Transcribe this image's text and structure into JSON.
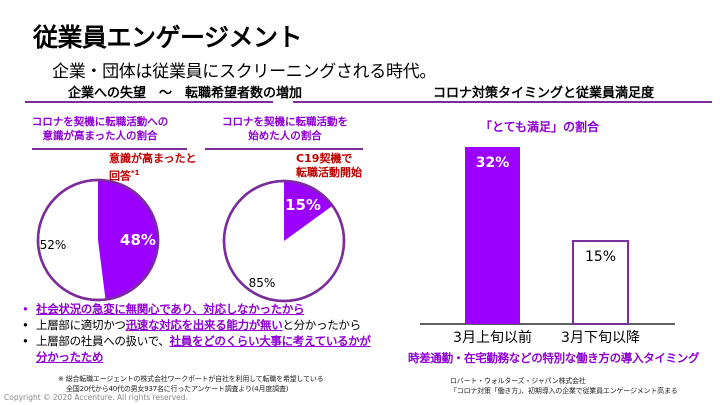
{
  "header": {
    "title": "従業員エンゲージメント",
    "subtitle": "企業・団体は従業員にスクリーニングされる時代。"
  },
  "left_section": {
    "heading": "企業への失望　～　転職希望者数の増加",
    "bullets": [
      {
        "plain_before": "",
        "highlight": "社会状況の急変に無関心であり、対応しなかったから",
        "plain_after": "",
        "dot_color": "#8f00d6"
      },
      {
        "plain_before": "上層部に適切かつ",
        "highlight": "迅速な対応を出来る能力が無い",
        "plain_after": "と分かったから",
        "dot_color": "#000000"
      },
      {
        "plain_before": "上層部の社員への扱いで、",
        "highlight": "社員をどのくらい大事に考えているかが",
        "highlight2": "分かったため",
        "dot_color": "#000000"
      }
    ],
    "footnote_line1": "※ 総合転職エージェントの株式会社ワークポートが自社を利用して転職を希望している",
    "footnote_line2": "全国20代から40代の男女937名に行ったアンケート調査より(4月度調査)"
  },
  "right_section": {
    "heading": "コロナ対策タイミングと従業員満足度",
    "axis_caption": "時差通勤・在宅勤務などの特別な働き方の導入タイミング",
    "source_line1": "ロバート・ウォルターズ・ジャパン株式会社",
    "source_line2": "「コロナ対策「働き方」、初期導入の企業で従業員エンゲージメント高まる"
  },
  "copyright": "Copyright © 2020 Accenture. All rights reserved.",
  "colors": {
    "accent_purple": "#8f00d6",
    "pie_fill": "#9b00ff",
    "outline_purple": "#7b2d9b",
    "note_red": "#c00000"
  },
  "chart_data": [
    {
      "type": "pie",
      "title_line1": "コロナを契機に転職活動への",
      "title_line2": "意識が高まった人の割合",
      "annotation_line1": "意識が高まったと",
      "annotation_line2": "回答",
      "annotation_sup": "*1",
      "slices": [
        {
          "label": "48%",
          "value": 48,
          "highlighted": true
        },
        {
          "label": "52%",
          "value": 52,
          "highlighted": false
        }
      ]
    },
    {
      "type": "pie",
      "title_line1": "コロナを契機に転職活動を",
      "title_line2": "始めた人の割合",
      "annotation_line1": "C19契機で",
      "annotation_line2": "転職活動開始",
      "slices": [
        {
          "label": "15%",
          "value": 15,
          "highlighted": true
        },
        {
          "label": "85%",
          "value": 85,
          "highlighted": false
        }
      ]
    },
    {
      "type": "bar",
      "title": "「とても満足」の割合",
      "categories": [
        "3月上旬以前",
        "3月下旬以降"
      ],
      "values": [
        32,
        15
      ],
      "value_labels": [
        "32%",
        "15%"
      ],
      "ylim": [
        0,
        32
      ],
      "xlabel": "時差通勤・在宅勤務などの特別な働き方の導入タイミング",
      "ylabel": "",
      "grid": false
    }
  ]
}
